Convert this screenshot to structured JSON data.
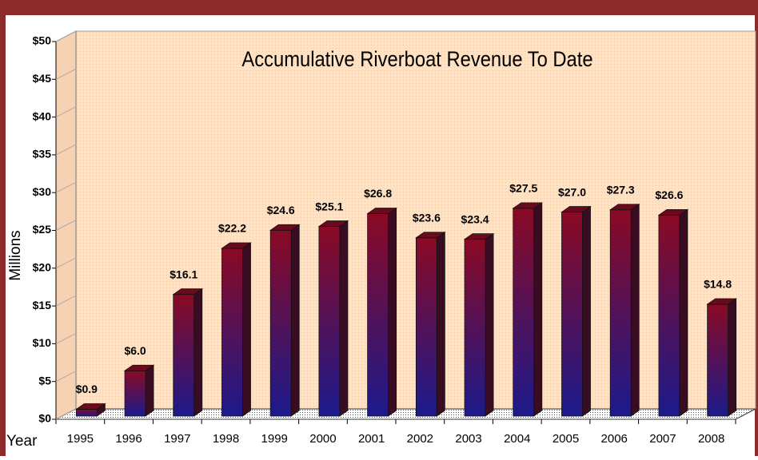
{
  "chart_data": {
    "type": "bar3d",
    "title": "Accumulative Riverboat Revenue To Date",
    "y_label": "Millions",
    "x_label": "Year",
    "categories": [
      "1995",
      "1996",
      "1997",
      "1998",
      "1999",
      "2000",
      "2001",
      "2002",
      "2003",
      "2004",
      "2005",
      "2006",
      "2007",
      "2008"
    ],
    "values": [
      0.9,
      6.0,
      16.1,
      22.2,
      24.6,
      25.1,
      26.8,
      23.6,
      23.4,
      27.5,
      27.0,
      27.3,
      26.6,
      14.8
    ],
    "value_labels": [
      "$0.9",
      "$6.0",
      "$16.1",
      "$22.2",
      "$24.6",
      "$25.1",
      "$26.8",
      "$23.6",
      "$23.4",
      "$27.5",
      "$27.0",
      "$27.3",
      "$26.6",
      "$14.8"
    ],
    "color_top": "#8a0a24",
    "color_bottom": "#1c1a8c",
    "ylim": [
      0,
      50
    ],
    "yticks": [
      {
        "value": 0,
        "label": "$0"
      },
      {
        "value": 5,
        "label": "$5"
      },
      {
        "value": 10,
        "label": "$10"
      },
      {
        "value": 15,
        "label": "$15"
      },
      {
        "value": 20,
        "label": "$20"
      },
      {
        "value": 25,
        "label": "$25"
      },
      {
        "value": 30,
        "label": "$30"
      },
      {
        "value": 35,
        "label": "$35"
      },
      {
        "value": 40,
        "label": "$40"
      },
      {
        "value": 45,
        "label": "$45"
      },
      {
        "value": 50,
        "label": "$50"
      }
    ]
  }
}
